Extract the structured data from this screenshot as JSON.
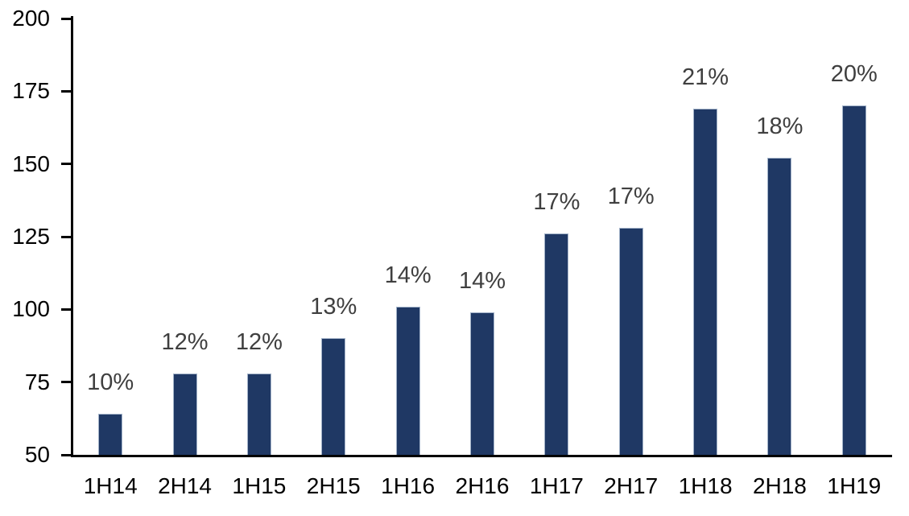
{
  "chart_data": {
    "type": "bar",
    "title": "",
    "xlabel": "",
    "ylabel": "",
    "categories": [
      "1H14",
      "2H14",
      "1H15",
      "2H15",
      "1H16",
      "2H16",
      "1H17",
      "2H17",
      "1H18",
      "2H18",
      "1H19"
    ],
    "values": [
      64,
      78,
      78,
      90,
      101,
      99,
      126,
      128,
      169,
      152,
      170
    ],
    "bar_labels": [
      "10%",
      "12%",
      "12%",
      "13%",
      "14%",
      "14%",
      "17%",
      "17%",
      "21%",
      "18%",
      "20%"
    ],
    "ylim": [
      50,
      200
    ],
    "yticks": [
      50,
      75,
      100,
      125,
      150,
      175,
      200
    ],
    "grid": false,
    "legend": false,
    "colors": {
      "bar_fill": "#1F3864",
      "bar_border": "#A3B3C9",
      "axis": "#000000",
      "axis_tick_label": "#000000",
      "data_label": "#3F3F3F",
      "background": "#FFFFFF"
    }
  }
}
